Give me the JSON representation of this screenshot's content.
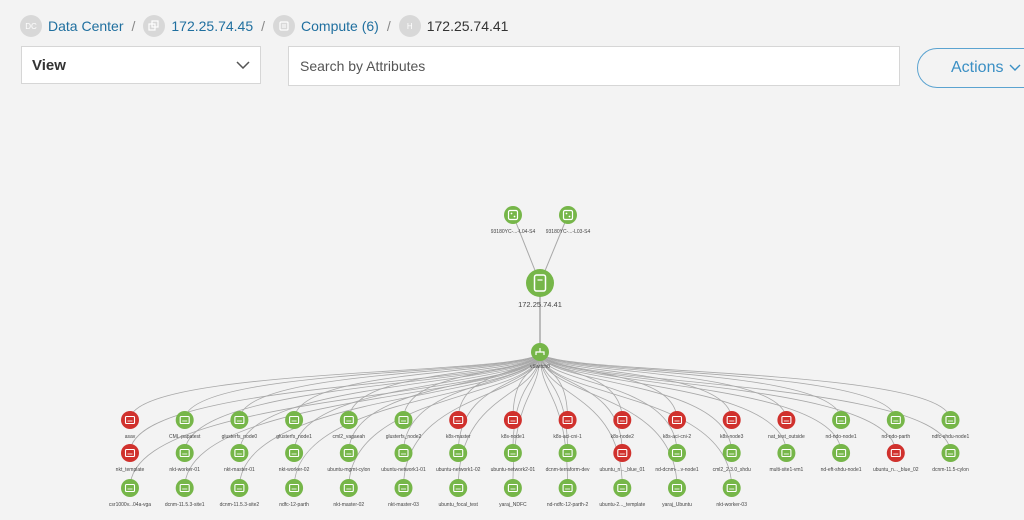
{
  "breadcrumb": [
    {
      "badge": "DC",
      "label": "Data Center"
    },
    {
      "badge": "",
      "label": "172.25.74.45"
    },
    {
      "badge": "",
      "label": "Compute (6)"
    },
    {
      "badge": "H",
      "label": "172.25.74.41"
    }
  ],
  "view_select": {
    "label": "View"
  },
  "search": {
    "placeholder": "Search by Attributes"
  },
  "actions": {
    "label": "Actions"
  },
  "topology": {
    "colors": {
      "green": "#76b649",
      "red": "#d0312d",
      "line": "#a8a8a8"
    },
    "switches": [
      {
        "label": "93180YC-...-L04-S4"
      },
      {
        "label": "93180YC-...-L03-S4"
      }
    ],
    "host": {
      "label": "172.25.74.41"
    },
    "vswitch": {
      "label": "vSwitch0"
    },
    "vms": [
      {
        "label": "asav",
        "status": "red"
      },
      {
        "label": "CML-papatest",
        "status": "green"
      },
      {
        "label": "glusterfs_node0",
        "status": "green"
      },
      {
        "label": "glusterfs_node1",
        "status": "green"
      },
      {
        "label": "cml2_vagaeah",
        "status": "green"
      },
      {
        "label": "glusterfs_node2",
        "status": "green"
      },
      {
        "label": "k8s-master",
        "status": "red"
      },
      {
        "label": "k8s-node1",
        "status": "red"
      },
      {
        "label": "k8s-aci-cni-1",
        "status": "red"
      },
      {
        "label": "k8s-node2",
        "status": "red"
      },
      {
        "label": "k8s-aci-cni-2",
        "status": "red"
      },
      {
        "label": "k8s-node3",
        "status": "red"
      },
      {
        "label": "nat_test_outside",
        "status": "red"
      },
      {
        "label": "nd-ndo-node1",
        "status": "green"
      },
      {
        "label": "nd-ndo-parth",
        "status": "green"
      },
      {
        "label": "ndfc-shdu-node1",
        "status": "green"
      },
      {
        "label": "nkt_template",
        "status": "red"
      },
      {
        "label": "nkt-worker-01",
        "status": "green"
      },
      {
        "label": "nkt-master-01",
        "status": "green"
      },
      {
        "label": "nkt-worker-02",
        "status": "green"
      },
      {
        "label": "ubuntu-mgmt-cylon",
        "status": "green"
      },
      {
        "label": "ubuntu-network1-01",
        "status": "green"
      },
      {
        "label": "ubuntu-network1-02",
        "status": "green"
      },
      {
        "label": "ubuntu-network2-01",
        "status": "green"
      },
      {
        "label": "dcnm-terraform-dev",
        "status": "green"
      },
      {
        "label": "ubuntu_n..._blue_01",
        "status": "red"
      },
      {
        "label": "nd-dcnm-...v-node1",
        "status": "green"
      },
      {
        "label": "cml2_2.3.0_shdu",
        "status": "green"
      },
      {
        "label": "multi-site1-vm1",
        "status": "green"
      },
      {
        "label": "nd-eft-shdu-node1",
        "status": "green"
      },
      {
        "label": "ubuntu_n..._blue_02",
        "status": "red"
      },
      {
        "label": "dcnm-11.5-cylon",
        "status": "green"
      },
      {
        "label": "csr1000v...04a-vga",
        "status": "green"
      },
      {
        "label": "dcnm-11.5.3-site1",
        "status": "green"
      },
      {
        "label": "dcnm-11.5.3-site2",
        "status": "green"
      },
      {
        "label": "ndfc-12-parth",
        "status": "green"
      },
      {
        "label": "nkt-master-02",
        "status": "green"
      },
      {
        "label": "nkt-master-03",
        "status": "green"
      },
      {
        "label": "ubuntu_focal_test",
        "status": "green"
      },
      {
        "label": "yaraj_NDFC",
        "status": "green"
      },
      {
        "label": "nd-ndfc-12-parth-2",
        "status": "green"
      },
      {
        "label": "ubuntu-2..._template",
        "status": "green"
      },
      {
        "label": "yaraj_Ubuntu",
        "status": "green"
      },
      {
        "label": "nkt-worker-03",
        "status": "green"
      }
    ]
  }
}
